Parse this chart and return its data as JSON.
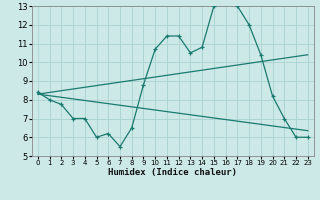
{
  "xlabel": "Humidex (Indice chaleur)",
  "background_color": "#cce9e8",
  "grid_color": "#aed4d3",
  "line_color": "#1a7a6e",
  "xlim": [
    -0.5,
    23.5
  ],
  "ylim": [
    5,
    13
  ],
  "xticks": [
    0,
    1,
    2,
    3,
    4,
    5,
    6,
    7,
    8,
    9,
    10,
    11,
    12,
    13,
    14,
    15,
    16,
    17,
    18,
    19,
    20,
    21,
    22,
    23
  ],
  "yticks": [
    5,
    6,
    7,
    8,
    9,
    10,
    11,
    12,
    13
  ],
  "line1_x": [
    0,
    1,
    2,
    3,
    4,
    5,
    6,
    7,
    8,
    9,
    10,
    11,
    12,
    13,
    14,
    15,
    16,
    17,
    18,
    19,
    20,
    21,
    22,
    23
  ],
  "line1_y": [
    8.4,
    8.0,
    7.75,
    7.0,
    7.0,
    6.0,
    6.2,
    5.5,
    6.5,
    8.8,
    10.7,
    11.4,
    11.4,
    10.5,
    10.8,
    13.0,
    13.2,
    13.0,
    12.0,
    10.4,
    8.2,
    7.0,
    6.0,
    6.0
  ],
  "line2_x": [
    0,
    23
  ],
  "line2_y": [
    8.3,
    10.4
  ],
  "line3_x": [
    0,
    23
  ],
  "line3_y": [
    8.3,
    6.35
  ]
}
